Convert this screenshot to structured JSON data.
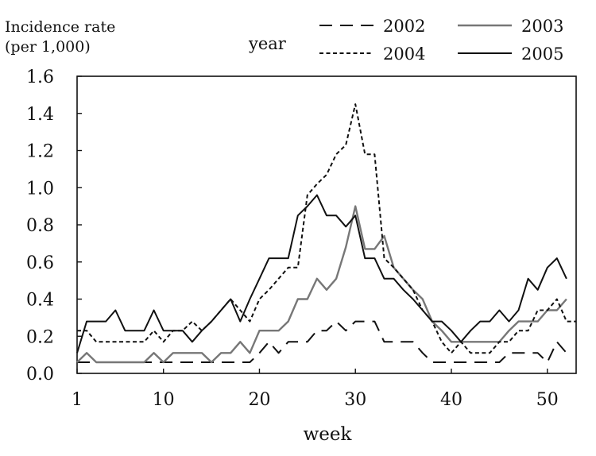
{
  "chart_data": {
    "type": "line",
    "ylabel_line1": "Incidence rate",
    "ylabel_line2": "(per 1,000)",
    "legend_title": "year",
    "xlabel": "week",
    "xlim": [
      1,
      53
    ],
    "ylim": [
      0,
      1.6
    ],
    "xticks": [
      1,
      10,
      20,
      30,
      40,
      50
    ],
    "yticks": [
      "0.0",
      "0.2",
      "0.4",
      "0.6",
      "0.8",
      "1.0",
      "1.2",
      "1.4",
      "1.6"
    ],
    "grid": false,
    "legend_position": "top-right",
    "x": [
      1,
      2,
      3,
      4,
      5,
      6,
      7,
      8,
      9,
      10,
      11,
      12,
      13,
      14,
      15,
      16,
      17,
      18,
      19,
      20,
      21,
      22,
      23,
      24,
      25,
      26,
      27,
      28,
      29,
      30,
      31,
      32,
      33,
      34,
      35,
      36,
      37,
      38,
      39,
      40,
      41,
      42,
      43,
      44,
      45,
      46,
      47,
      48,
      49,
      50,
      51,
      52,
      53
    ],
    "series": [
      {
        "name": "2002",
        "color": "#111111",
        "dash": "long-dash",
        "values": [
          0.06,
          0.06,
          0.06,
          0.06,
          0.06,
          0.06,
          0.06,
          0.06,
          0.06,
          0.06,
          0.06,
          0.06,
          0.06,
          0.06,
          0.06,
          0.06,
          0.06,
          0.06,
          0.06,
          0.11,
          0.17,
          0.11,
          0.17,
          0.17,
          0.17,
          0.23,
          0.23,
          0.28,
          0.23,
          0.28,
          0.28,
          0.28,
          0.17,
          0.17,
          0.17,
          0.17,
          0.11,
          0.06,
          0.06,
          0.06,
          0.06,
          0.06,
          0.06,
          0.06,
          0.06,
          0.11,
          0.11,
          0.11,
          0.11,
          0.06,
          0.17,
          0.11,
          null
        ]
      },
      {
        "name": "2003",
        "color": "#777777",
        "dash": "solid",
        "values": [
          0.06,
          0.11,
          0.06,
          0.06,
          0.06,
          0.06,
          0.06,
          0.06,
          0.11,
          0.06,
          0.11,
          0.11,
          0.11,
          0.11,
          0.06,
          0.11,
          0.11,
          0.17,
          0.11,
          0.23,
          0.23,
          0.23,
          0.28,
          0.4,
          0.4,
          0.51,
          0.45,
          0.51,
          0.68,
          0.9,
          0.67,
          0.67,
          0.74,
          0.57,
          0.51,
          0.45,
          0.4,
          0.28,
          0.23,
          0.17,
          0.17,
          0.17,
          0.17,
          0.17,
          0.17,
          0.23,
          0.28,
          0.28,
          0.28,
          0.34,
          0.34,
          0.4,
          null
        ]
      },
      {
        "name": "2004",
        "color": "#111111",
        "dash": "short-dash",
        "values": [
          0.23,
          0.23,
          0.17,
          0.17,
          0.17,
          0.17,
          0.17,
          0.17,
          0.23,
          0.17,
          0.23,
          0.23,
          0.28,
          0.23,
          0.28,
          0.34,
          0.4,
          0.34,
          0.28,
          0.4,
          0.45,
          0.51,
          0.57,
          0.57,
          0.96,
          1.02,
          1.07,
          1.18,
          1.23,
          1.45,
          1.18,
          1.18,
          0.62,
          0.57,
          0.51,
          0.45,
          0.34,
          0.28,
          0.17,
          0.11,
          0.17,
          0.11,
          0.11,
          0.11,
          0.17,
          0.17,
          0.23,
          0.23,
          0.34,
          0.34,
          0.4,
          0.28,
          0.28
        ]
      },
      {
        "name": "2005",
        "color": "#111111",
        "dash": "solid",
        "values": [
          0.11,
          0.28,
          0.28,
          0.28,
          0.34,
          0.23,
          0.23,
          0.23,
          0.34,
          0.23,
          0.23,
          0.23,
          0.17,
          0.23,
          0.28,
          0.34,
          0.4,
          0.28,
          0.4,
          0.51,
          0.62,
          0.62,
          0.62,
          0.85,
          0.9,
          0.96,
          0.85,
          0.85,
          0.79,
          0.85,
          0.62,
          0.62,
          0.51,
          0.51,
          0.45,
          0.4,
          0.34,
          0.28,
          0.28,
          0.23,
          0.17,
          0.23,
          0.28,
          0.28,
          0.34,
          0.28,
          0.34,
          0.51,
          0.45,
          0.57,
          0.62,
          0.51,
          null
        ]
      }
    ]
  }
}
